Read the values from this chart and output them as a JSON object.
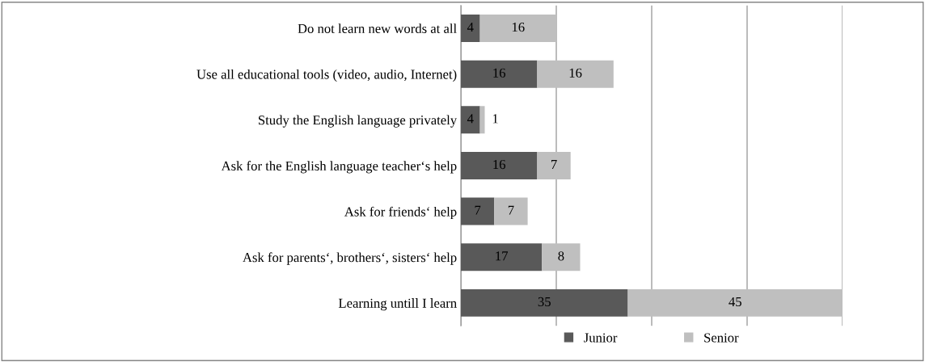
{
  "chart_data": {
    "type": "bar",
    "orientation": "horizontal",
    "stacked": true,
    "categories": [
      "Do not learn new words at all",
      "Use all educational tools (video, audio, Internet)",
      "Study the English language privately",
      "Ask for the English language teacher‘s help",
      "Ask for friends‘ help",
      "Ask for parents‘, brothers‘, sisters‘ help",
      "Learning untill I learn"
    ],
    "series": [
      {
        "name": "Junior",
        "color": "#595959",
        "values": [
          4,
          16,
          4,
          16,
          7,
          17,
          35
        ]
      },
      {
        "name": "Senior",
        "color": "#bfbfbf",
        "values": [
          16,
          16,
          1,
          7,
          7,
          8,
          45
        ]
      }
    ],
    "xlim": [
      0,
      80
    ],
    "xticks": [
      {
        "value": 0,
        "label": null
      },
      {
        "value": 20,
        "label": null
      },
      {
        "value": 40,
        "label": null
      },
      {
        "value": 60,
        "label": null
      },
      {
        "value": 80,
        "label": null
      }
    ],
    "tick_labels": "y",
    "grid": "x",
    "legend": "bottom",
    "data_labels": true
  }
}
